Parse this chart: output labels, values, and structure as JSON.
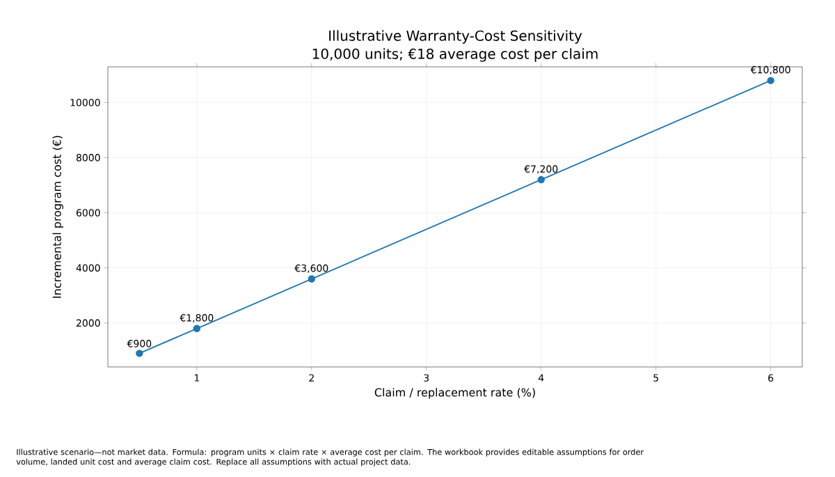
{
  "chart_data": {
    "type": "line",
    "title": "Illustrative Warranty-Cost Sensitivity",
    "subtitle": "10,000 units; €18 average cost per claim",
    "xlabel": "Claim / replacement rate (%)",
    "ylabel": "Incremental program cost (€)",
    "x": [
      0.5,
      1,
      2,
      4,
      6
    ],
    "series": [
      {
        "color": "#1f77b4",
        "values": [
          900,
          1800,
          3600,
          7200,
          10800
        ],
        "value_labels": [
          "€900",
          "€1,800",
          "€3,600",
          "€7,200",
          "€10,800"
        ]
      }
    ],
    "xlim": [
      0.225,
      6.275
    ],
    "ylim": [
      405,
      11295
    ],
    "xticks": [
      1,
      2,
      3,
      4,
      5,
      6
    ],
    "yticks": [
      2000,
      4000,
      6000,
      8000,
      10000
    ],
    "grid": true,
    "marker": "circle",
    "line_style": "solid",
    "annotations": [
      "Illustrative scenario—not market data. Formula: program units × claim rate × average cost per claim. The workbook provides editable assumptions for order volume, landed unit cost and average claim cost. Replace all assumptions with actual project data."
    ]
  }
}
